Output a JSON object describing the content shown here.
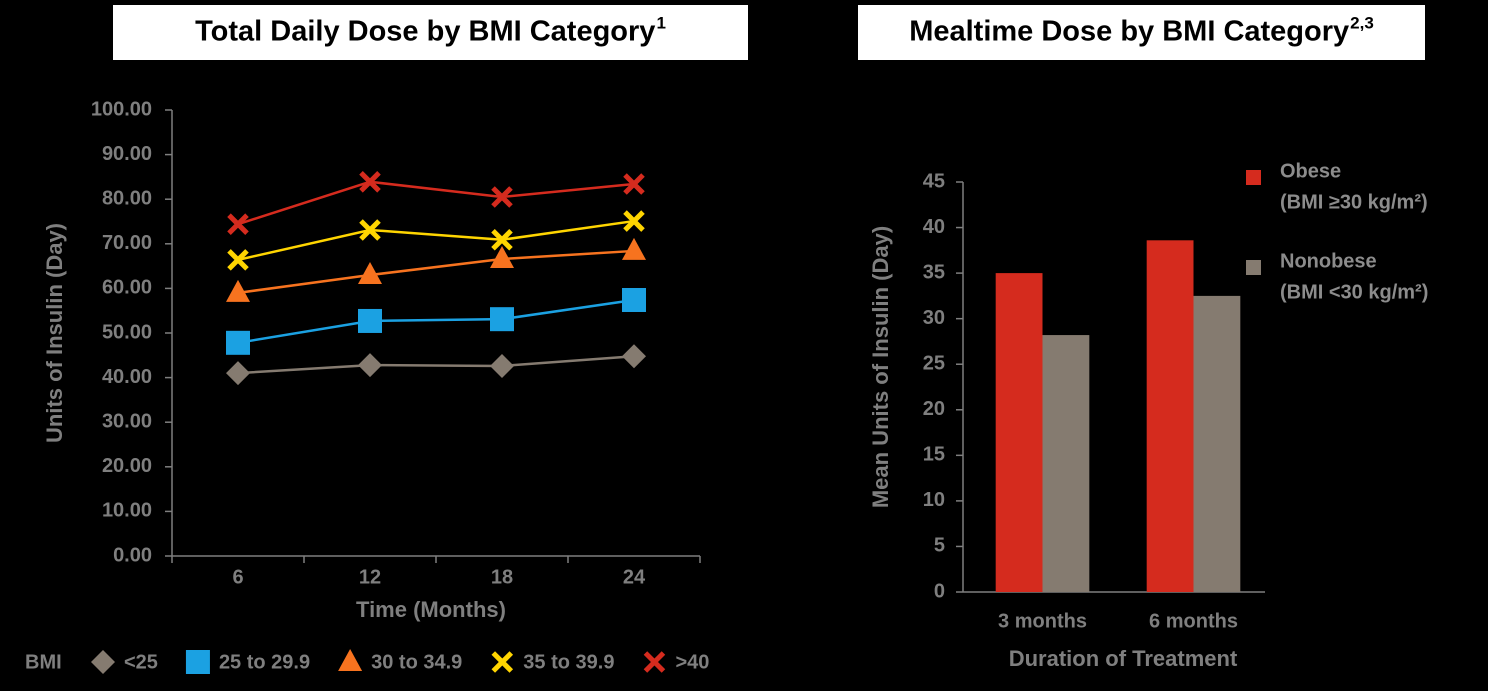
{
  "chart_data": [
    {
      "type": "line",
      "title": "Total Daily Dose by BMI Category",
      "title_superscript": "1",
      "x_label": "Time (Months)",
      "y_label": "Units of Insulin (Day)",
      "legend_title": "BMI",
      "legend": "bottom",
      "categories": [
        "6",
        "12",
        "18",
        "24"
      ],
      "ylim": [
        0,
        100
      ],
      "yticks": [
        {
          "value": 0,
          "label": "0.00"
        },
        {
          "value": 10,
          "label": "10.00"
        },
        {
          "value": 20,
          "label": "20.00"
        },
        {
          "value": 30,
          "label": "30.00"
        },
        {
          "value": 40,
          "label": "40.00"
        },
        {
          "value": 50,
          "label": "50.00"
        },
        {
          "value": 60,
          "label": "60.00"
        },
        {
          "value": 70,
          "label": "70.00"
        },
        {
          "value": 80,
          "label": "80.00"
        },
        {
          "value": 90,
          "label": "90.00"
        },
        {
          "value": 100,
          "label": "100.00"
        }
      ],
      "grid": false,
      "series": [
        {
          "name": "<25",
          "color": "#857b70",
          "marker": "diamond",
          "values": [
            41,
            42.8,
            42.6,
            44.8
          ]
        },
        {
          "name": "25 to 29.9",
          "color": "#1ba1e2",
          "marker": "square",
          "values": [
            47.8,
            52.7,
            53.1,
            57.4
          ]
        },
        {
          "name": "30 to 34.9",
          "color": "#f7731f",
          "marker": "triangle",
          "values": [
            59,
            63,
            66.6,
            68.4
          ]
        },
        {
          "name": "35 to 39.9",
          "color": "#ffd500",
          "marker": "x",
          "values": [
            66.4,
            73.1,
            70.9,
            75.1
          ]
        },
        {
          "name": ">40",
          "color": "#d52b1e",
          "marker": "x",
          "values": [
            74.4,
            83.9,
            80.5,
            83.4
          ]
        }
      ]
    },
    {
      "type": "bar",
      "title": "Mealtime Dose by BMI Category",
      "title_superscript": "2,3",
      "x_label": "Duration of Treatment",
      "y_label": "Mean Units of Insulin (Day)",
      "legend": "upper right",
      "categories": [
        "3 months",
        "6 months"
      ],
      "ylim": [
        0,
        45
      ],
      "yticks": [
        0,
        5,
        10,
        15,
        20,
        25,
        30,
        35,
        40,
        45
      ],
      "grid": false,
      "series": [
        {
          "name": "Obese",
          "definition": "(BMI ≥30 kg/m²)",
          "color": "#d52b1e",
          "values": [
            35,
            38.6
          ]
        },
        {
          "name": "Nonobese",
          "definition": "(BMI <30 kg/m²)",
          "color": "#857b70",
          "values": [
            28.2,
            32.5
          ]
        }
      ]
    }
  ]
}
